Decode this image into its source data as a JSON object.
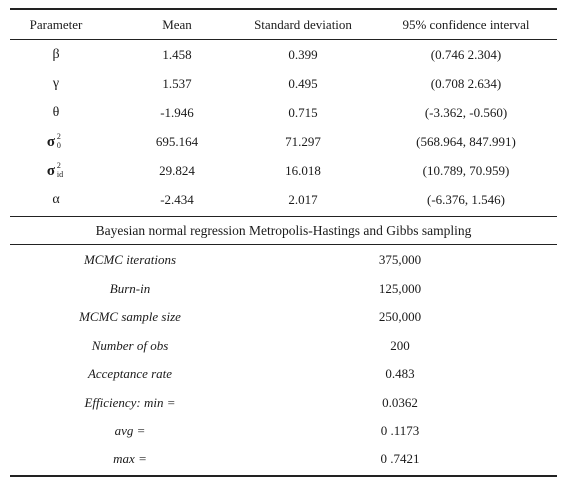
{
  "table_top": {
    "headers": [
      "Parameter",
      "Mean",
      "Standard deviation",
      "95% confidence interval"
    ],
    "rows": [
      {
        "param": "β",
        "mean": "1.458",
        "sd": "0.399",
        "ci": "(0.746 2.304)"
      },
      {
        "param": "γ",
        "mean": "1.537",
        "sd": "0.495",
        "ci": "(0.708 2.634)"
      },
      {
        "param": "θ",
        "mean": "-1.946",
        "sd": "0.715",
        "ci": "(-3.362, -0.560)"
      },
      {
        "param": "σ",
        "param_sup": "2",
        "param_sub": "0",
        "mean": "695.164",
        "sd": "71.297",
        "ci": "(568.964, 847.991)"
      },
      {
        "param": "σ",
        "param_sup": "2",
        "param_sub": "id",
        "mean": "29.824",
        "sd": "16.018",
        "ci": "(10.789, 70.959)"
      },
      {
        "param": "α",
        "mean": "-2.434",
        "sd": "2.017",
        "ci": "(-6.376, 1.546)"
      }
    ]
  },
  "caption": "Bayesian normal regression Metropolis-Hastings and Gibbs sampling",
  "table_bottom": {
    "rows": [
      {
        "label": "MCMC iterations",
        "value": "375,000"
      },
      {
        "label": "Burn-in",
        "value": "125,000"
      },
      {
        "label": "MCMC sample size",
        "value": "250,000"
      },
      {
        "label": "Number of obs",
        "value": "200"
      },
      {
        "label": "Acceptance rate",
        "value": "0.483"
      },
      {
        "label": "Efficiency: min =",
        "value": "0.0362"
      },
      {
        "label": "avg =",
        "value": "0 .1173"
      },
      {
        "label": "max =",
        "value": "0 .7421"
      }
    ]
  }
}
